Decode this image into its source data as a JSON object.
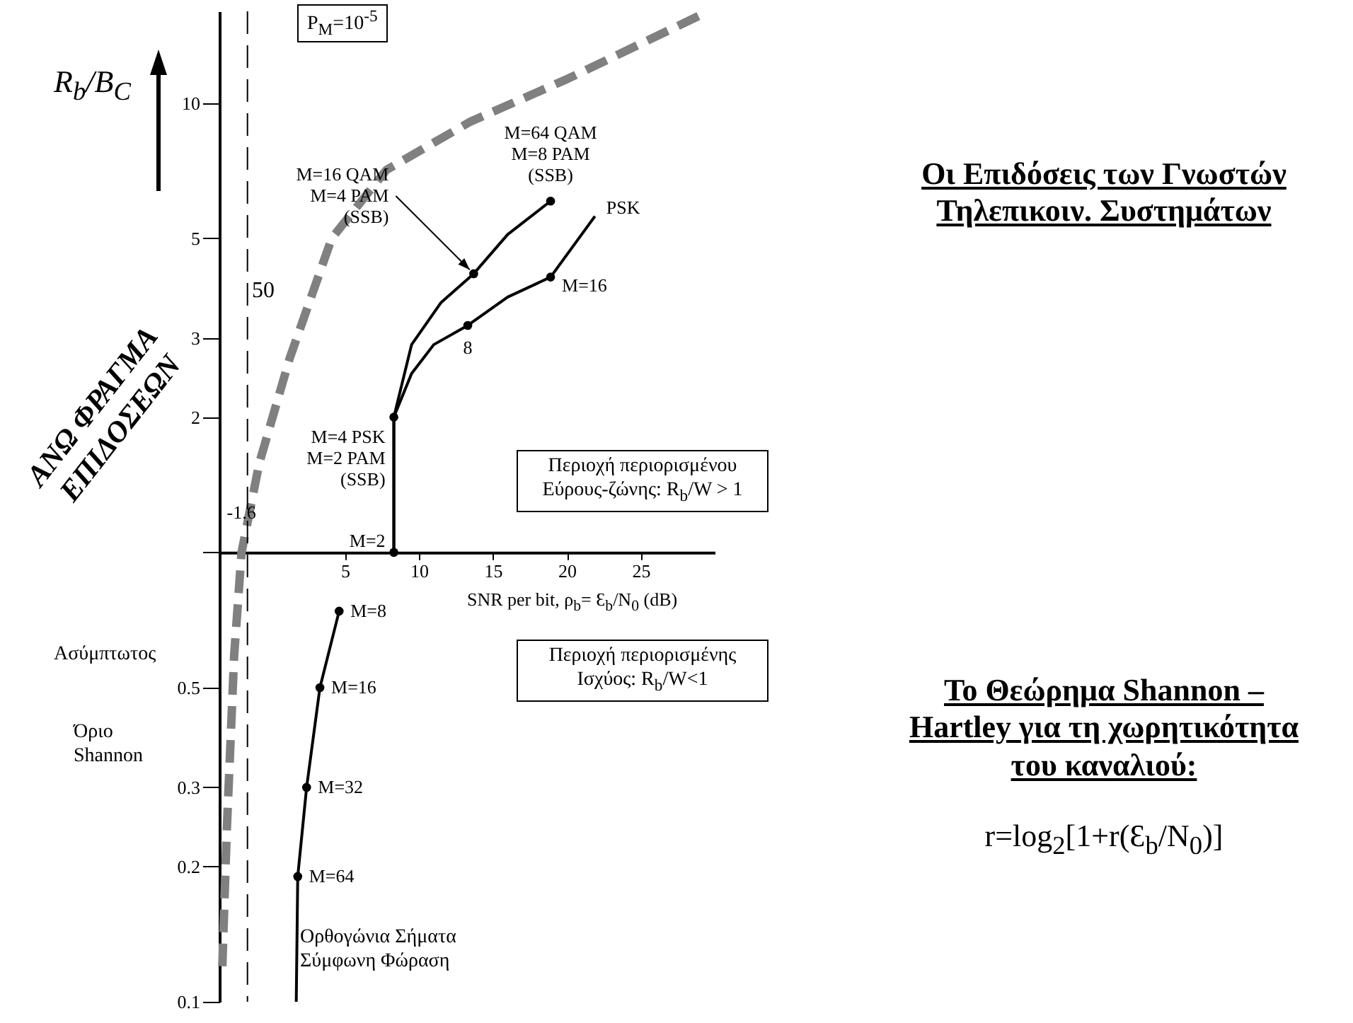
{
  "chart_data": {
    "type": "line",
    "title": "Οι Επιδόσεις των Γνωστών Τηλεπικοιν. Συστημάτων",
    "xlabel": "SNR per bit, ρ$_{b}$= Ɛ$_{b}$/N$_{0}$ (dB)",
    "ylabel": "R$_{b}$/B$_{C}$",
    "xlim": [
      -3.5,
      30
    ],
    "xticks": [
      5,
      10,
      15,
      20,
      25
    ],
    "ylim": [
      0.1,
      16
    ],
    "yticks": [
      0.1,
      0.2,
      0.3,
      0.5,
      {
        "value": 1,
        "label": null
      },
      2,
      3,
      5,
      10
    ],
    "log": "y",
    "grid": false,
    "series": [
      {
        "color": "#808080",
        "line_style": "dashed",
        "x": [
          -3.3,
          -3.0,
          -2.5,
          -2.0,
          -0.8,
          1.25,
          4.1,
          7.8,
          13.5,
          20,
          29.4
        ],
        "values": [
          0.12,
          0.24,
          0.59,
          1,
          1.58,
          2.7,
          5,
          7.1,
          9.1,
          11.3,
          15.9
        ]
      },
      {
        "color": "#000000",
        "line_style": "solid",
        "x": [
          8.3,
          8.3,
          9.5,
          11.5,
          13.7,
          16,
          18.9
        ],
        "values": [
          1,
          2,
          2.9,
          3.6,
          4.17,
          5.1,
          6.05
        ]
      },
      {
        "color": "#000000",
        "line_style": "solid",
        "x": [
          8.3,
          8.3,
          9.5,
          11,
          13.3,
          16,
          18.9,
          21.9
        ],
        "values": [
          1,
          2,
          2.5,
          2.9,
          3.2,
          3.7,
          4.1,
          5.6
        ]
      },
      {
        "color": "#000000",
        "line_style": "solid",
        "x": [
          1.7,
          1.8,
          2.4,
          3.3,
          4.6
        ],
        "values": [
          0.1,
          0.19,
          0.3,
          0.5,
          0.74
        ]
      },
      {
        "type": "scatter",
        "color": "#000000",
        "marker": "circle",
        "x": [
          8.3,
          8.3,
          13.7,
          18.9,
          13.3,
          18.9,
          4.6,
          3.3,
          2.4,
          1.8
        ],
        "values": [
          1,
          2,
          4.17,
          6.05,
          3.2,
          4.1,
          0.74,
          0.5,
          0.3,
          0.19
        ]
      }
    ],
    "ref_lines": [
      {
        "axis": "x",
        "value": -1.6,
        "label": "-1.6",
        "line_style": "dashed",
        "color": "#000000"
      }
    ],
    "annotations": [
      "P$_{M}$=10$^{-5}$",
      "50",
      "ΑΝΩ ΦΡΑΓΜΑ ΕΠΙΔΟΣΕΩΝ",
      "Περιοχή περιορισμένου Εύρους-ζώνης: R$_{b}$/W > 1",
      "Περιοχή περιορισμένης Ισχύος: R$_{b}$/W<1",
      "Ασύμπτωτος",
      "Όριο Shannon",
      "Ορθογώνια Σήματα Σύμφωνη Φώραση",
      "Το Θεώρημα Shannon –Hartley για τη χωρητικότητα του καναλιού:",
      "r=log$_{2}$[1+r(Ɛ$_{b}$/N$_{0}$)]",
      {
        "text": "M=2",
        "x": 8.3,
        "y": 1
      },
      {
        "text": "M=4 PSK\nM=2 PAM\n(SSB)",
        "x": 8.3,
        "y": 2
      },
      {
        "text": "M=16 QAM\nM=4 PAM\n(SSB)",
        "x": 13.7,
        "y": 4.17
      },
      {
        "text": "M=64 QAM\nM=8 PAM\n(SSB)",
        "x": 18.9,
        "y": 6.05
      },
      {
        "text": "PSK",
        "x": 21.9,
        "y": 5.6
      },
      {
        "text": "8",
        "x": 13.3,
        "y": 3.2
      },
      {
        "text": "M=16",
        "x": 18.9,
        "y": 4.1
      },
      {
        "text": "M=8",
        "x": 4.6,
        "y": 0.74
      },
      {
        "text": "M=16",
        "x": 3.3,
        "y": 0.5
      },
      {
        "text": "M=32",
        "x": 2.4,
        "y": 0.3
      },
      {
        "text": "M=64",
        "x": 1.8,
        "y": 0.19
      }
    ]
  }
}
